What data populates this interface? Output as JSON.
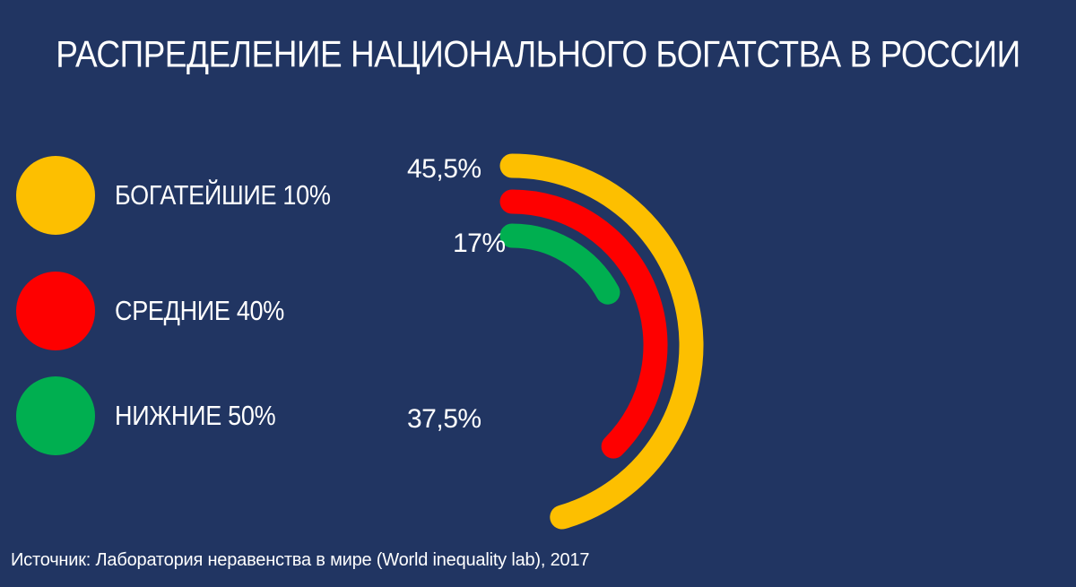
{
  "chart_data": {
    "type": "radial-bar",
    "title": "РАСПРЕДЕЛЕНИЕ НАЦИОНАЛЬНОГО БОГАТСТВА В РОССИИ",
    "max_value": 100,
    "series": [
      {
        "name": "БОГАТЕЙШИЕ 10%",
        "value": 45.5,
        "label": "45,5%",
        "color": "#FDBF00"
      },
      {
        "name": "СРЕДНИЕ 40%",
        "value": 37.5,
        "label": "37,5%",
        "color": "#FE0000"
      },
      {
        "name": "НИЖНИЕ 50%",
        "value": 17,
        "label": "17%",
        "color": "#00AF50"
      }
    ]
  },
  "source": "Источник: Лаборатория неравенства в мире (World inequality lab), 2017"
}
